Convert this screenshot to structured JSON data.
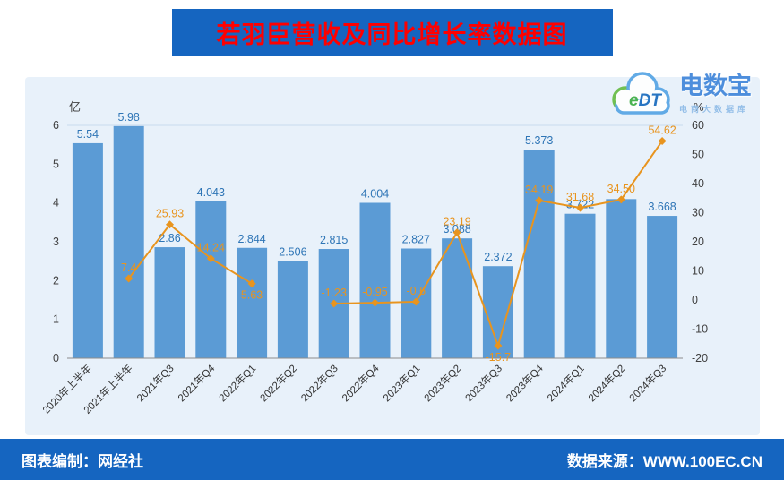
{
  "title": "若羽臣营收及同比增长率数据图",
  "watermark": {
    "logo_e": "e",
    "logo_dt": "DT",
    "brand": "电数宝",
    "tagline": "电商大数据库"
  },
  "footer": {
    "left": "图表编制：网经社",
    "right": "数据来源：WWW.100EC.CN"
  },
  "chart_data": {
    "type": "bar+line",
    "title": "若羽臣营收及同比增长率数据图",
    "categories": [
      "2020年上半年",
      "2021年上半年",
      "2021年Q3",
      "2021年Q4",
      "2022年Q1",
      "2022年Q2",
      "2022年Q3",
      "2022年Q4",
      "2023年Q1",
      "2023年Q2",
      "2023年Q3",
      "2023年Q4",
      "2024年Q1",
      "2024年Q2",
      "2024年Q3"
    ],
    "series": [
      {
        "name": "营收(亿)",
        "type": "bar",
        "values": [
          5.54,
          5.98,
          2.86,
          4.043,
          2.844,
          2.506,
          2.815,
          4.004,
          2.827,
          3.088,
          2.372,
          5.373,
          3.722,
          4.1,
          3.668
        ],
        "labels": [
          "5.54",
          "5.98",
          "2.86",
          "4.043",
          "2.844",
          "2.506",
          "2.815",
          "4.004",
          "2.827",
          "3.088",
          "2.372",
          "5.373",
          "3.722",
          "",
          "3.668"
        ]
      },
      {
        "name": "同比增长率(%)",
        "type": "line",
        "values": [
          null,
          7.4,
          25.93,
          14.24,
          5.63,
          null,
          -1.23,
          -0.95,
          -0.6,
          23.19,
          -15.7,
          34.19,
          31.68,
          34.5,
          54.62
        ],
        "labels": [
          "",
          "7.4",
          "25.93",
          "14.24",
          "5.63",
          "",
          "-1.23",
          "-0.95",
          "-0.6",
          "23.19",
          "-15.7",
          "34.19",
          "31.68",
          "34.50",
          "54.62"
        ]
      }
    ],
    "left_axis": {
      "label": "亿",
      "min": 0,
      "max": 6,
      "ticks": [
        0,
        1,
        2,
        3,
        4,
        5,
        6
      ]
    },
    "right_axis": {
      "label": "%",
      "min": -20,
      "max": 60,
      "ticks": [
        -20,
        -10,
        0,
        10,
        20,
        30,
        40,
        50,
        60
      ]
    },
    "grid": "top-border-only",
    "legend_position": "none",
    "colors": {
      "bar": "#5B9BD5",
      "bar_label": "#2E75B6",
      "line": "#E8941E",
      "line_label": "#E8941E",
      "title_bg": "#1565C0",
      "title_text": "#FF0000",
      "footer_bg": "#1565C0",
      "panel_bg": "#E8F1FA"
    }
  }
}
